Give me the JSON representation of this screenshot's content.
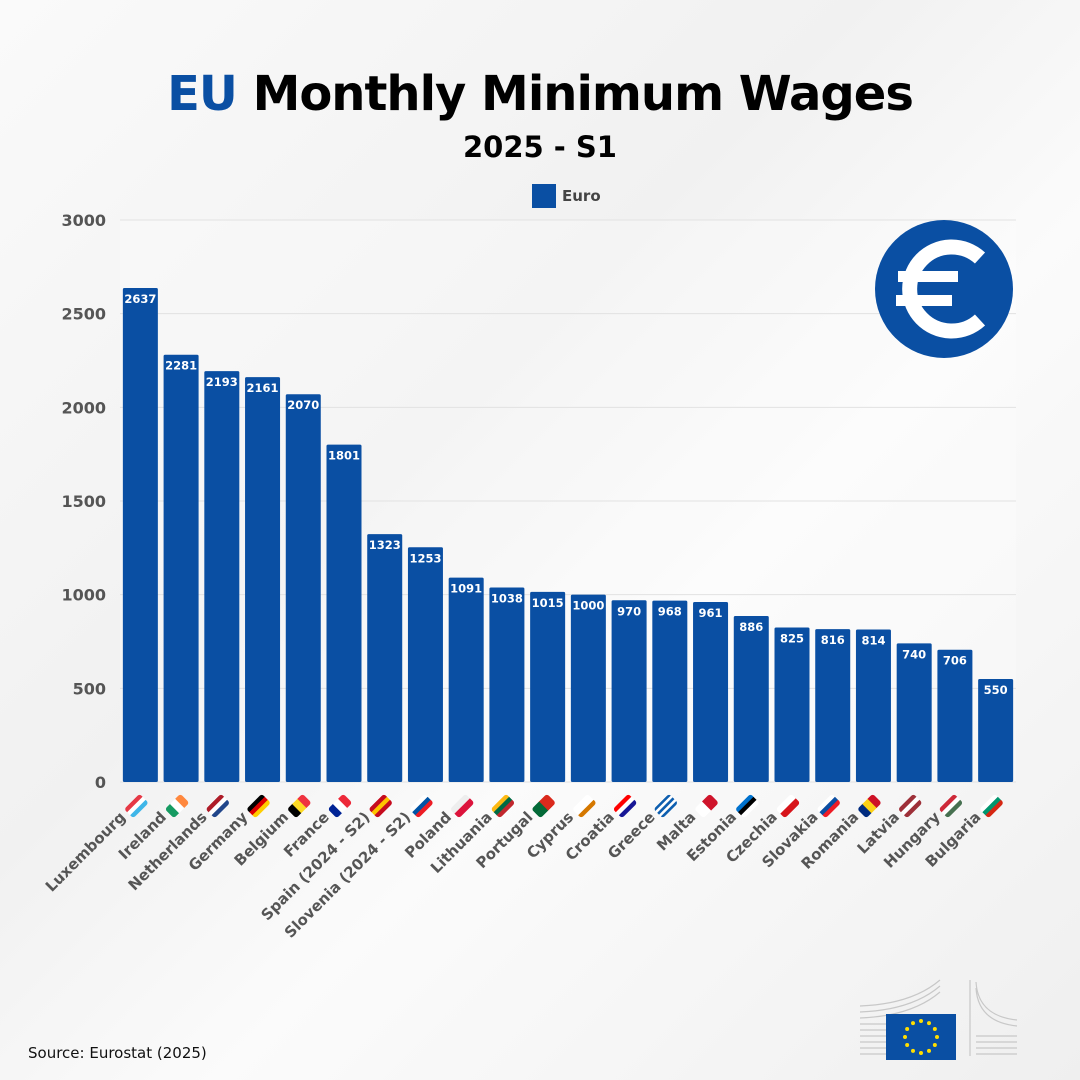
{
  "title": {
    "highlight": "EU",
    "rest": "Monthly Minimum Wages"
  },
  "subtitle": "2025 - S1",
  "source": "Source: Eurostat (2025)",
  "logo_icon": "european-commission-logo",
  "currency_icon": "euro-icon",
  "colors": {
    "bar": "#0a4fa3",
    "accent": "#0a4fa3",
    "axis_text": "#555555"
  },
  "chart_data": {
    "type": "bar",
    "title": "EU Monthly Minimum Wages",
    "subtitle": "2025 - S1",
    "legend": {
      "entries": [
        "Euro"
      ],
      "placement": "top"
    },
    "ylim": [
      0,
      3000
    ],
    "yticks": [
      0,
      500,
      1000,
      1500,
      2000,
      2500,
      3000
    ],
    "grid": true,
    "categories": [
      "Luxembourg",
      "Ireland",
      "Netherlands",
      "Germany",
      "Belgium",
      "France",
      "Spain (2024 - S2)",
      "Slovenia (2024 - S2)",
      "Poland",
      "Lithuania",
      "Portugal",
      "Cyprus",
      "Croatia",
      "Greece",
      "Malta",
      "Estonia",
      "Czechia",
      "Slovakia",
      "Romania",
      "Latvia",
      "Hungary",
      "Bulgaria"
    ],
    "series": [
      {
        "name": "Euro",
        "values": [
          2637,
          2281,
          2193,
          2161,
          2070,
          1801,
          1323,
          1253,
          1091,
          1038,
          1015,
          1000,
          970,
          968,
          961,
          886,
          825,
          816,
          814,
          740,
          706,
          550
        ]
      }
    ],
    "flags": [
      {
        "icon": "flag-luxembourg-icon",
        "colors": [
          "#e63946",
          "#ffffff",
          "#3fb6e8"
        ]
      },
      {
        "icon": "flag-ireland-icon",
        "colors": [
          "#169b62",
          "#ffffff",
          "#ff883e"
        ],
        "vertical": true
      },
      {
        "icon": "flag-netherlands-icon",
        "colors": [
          "#ae1c28",
          "#ffffff",
          "#21468b"
        ]
      },
      {
        "icon": "flag-germany-icon",
        "colors": [
          "#000000",
          "#dd0000",
          "#ffce00"
        ]
      },
      {
        "icon": "flag-belgium-icon",
        "colors": [
          "#000000",
          "#fdda24",
          "#ef3340"
        ],
        "vertical": true
      },
      {
        "icon": "flag-france-icon",
        "colors": [
          "#002395",
          "#ffffff",
          "#ed2939"
        ],
        "vertical": true
      },
      {
        "icon": "flag-spain-icon",
        "colors": [
          "#c60b1e",
          "#ffc400",
          "#c60b1e"
        ]
      },
      {
        "icon": "flag-slovenia-icon",
        "colors": [
          "#ffffff",
          "#0054a6",
          "#ed1c24"
        ]
      },
      {
        "icon": "flag-poland-icon",
        "colors": [
          "#eeeeee",
          "#dc143c"
        ]
      },
      {
        "icon": "flag-lithuania-icon",
        "colors": [
          "#fdb913",
          "#006a44",
          "#c1272d"
        ]
      },
      {
        "icon": "flag-portugal-icon",
        "colors": [
          "#046a38",
          "#da291c"
        ],
        "vertical": true
      },
      {
        "icon": "flag-cyprus-icon",
        "colors": [
          "#ffffff",
          "#ffffff",
          "#d57800"
        ]
      },
      {
        "icon": "flag-croatia-icon",
        "colors": [
          "#ff0000",
          "#ffffff",
          "#171796"
        ]
      },
      {
        "icon": "flag-greece-icon",
        "colors": [
          "#0d5eaf",
          "#ffffff",
          "#0d5eaf",
          "#ffffff",
          "#0d5eaf"
        ]
      },
      {
        "icon": "flag-malta-icon",
        "colors": [
          "#ffffff",
          "#cf142b"
        ],
        "vertical": true
      },
      {
        "icon": "flag-estonia-icon",
        "colors": [
          "#0072ce",
          "#000000",
          "#ffffff"
        ]
      },
      {
        "icon": "flag-czechia-icon",
        "colors": [
          "#ffffff",
          "#d7141a"
        ]
      },
      {
        "icon": "flag-slovakia-icon",
        "colors": [
          "#ffffff",
          "#0b4ea2",
          "#ee1c25"
        ]
      },
      {
        "icon": "flag-romania-icon",
        "colors": [
          "#002b7f",
          "#fcd116",
          "#ce1126"
        ],
        "vertical": true
      },
      {
        "icon": "flag-latvia-icon",
        "colors": [
          "#9e3039",
          "#ffffff",
          "#9e3039"
        ]
      },
      {
        "icon": "flag-hungary-icon",
        "colors": [
          "#ce2939",
          "#ffffff",
          "#477050"
        ]
      },
      {
        "icon": "flag-bulgaria-icon",
        "colors": [
          "#ffffff",
          "#00966e",
          "#d62612"
        ]
      }
    ]
  }
}
